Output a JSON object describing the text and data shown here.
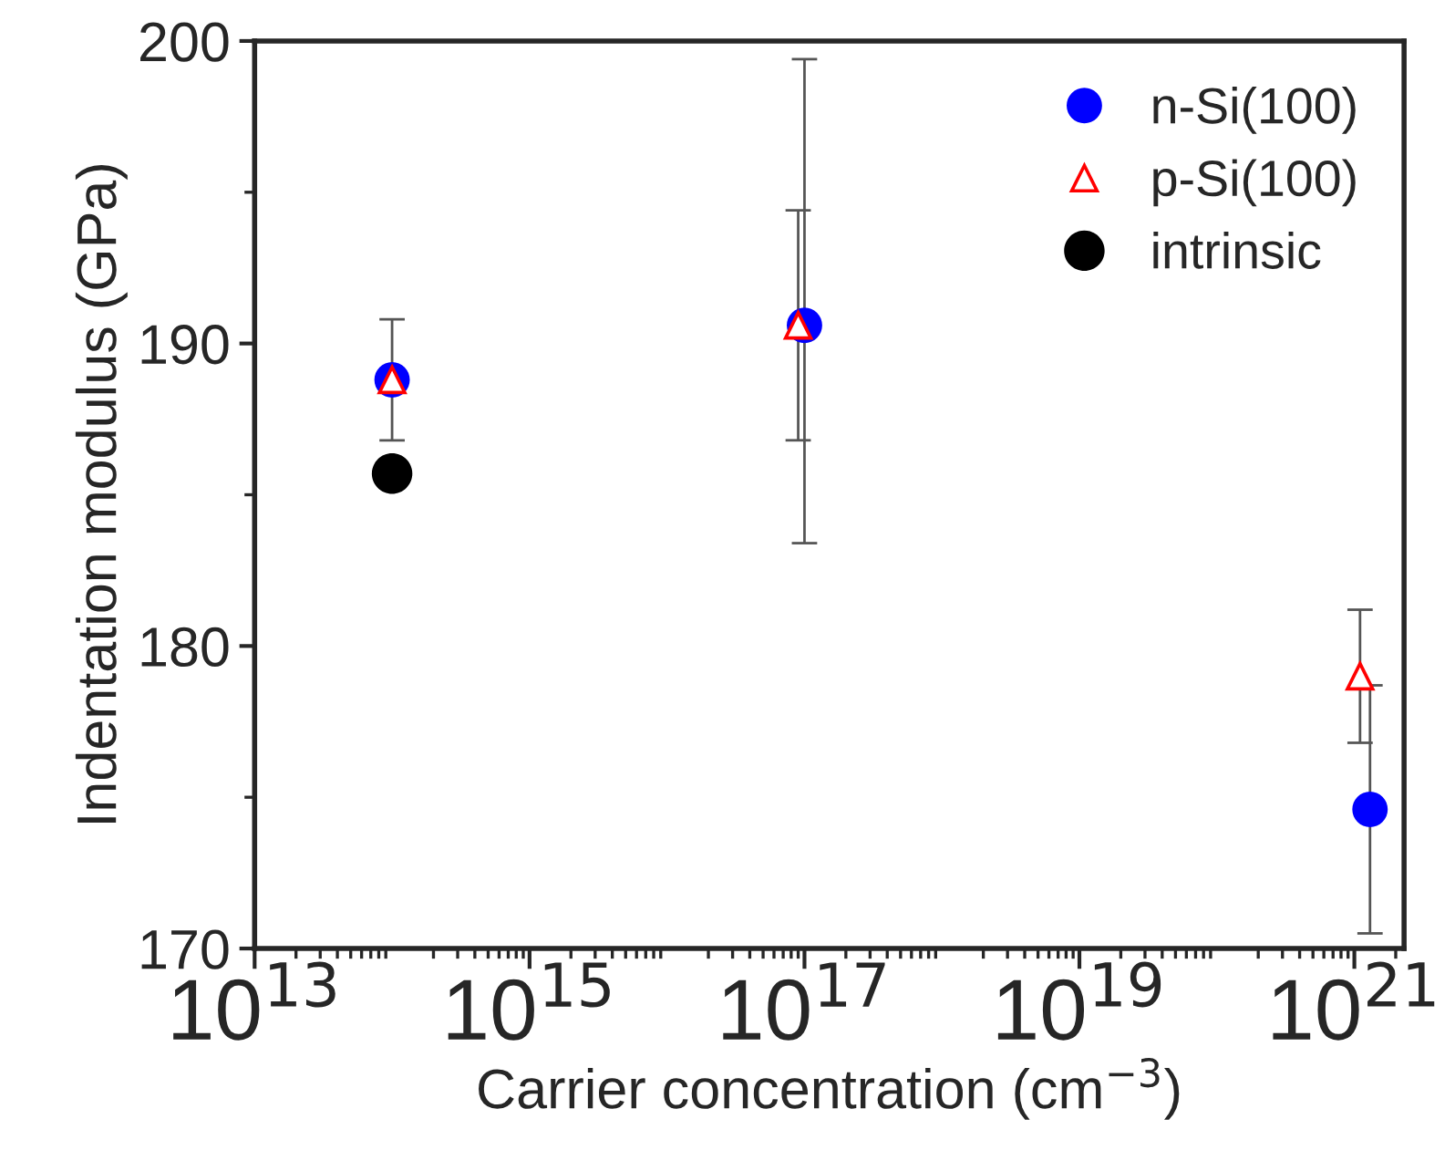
{
  "chart_data": {
    "type": "scatter",
    "xlabel": "Carrier concentration (cm$^{−3}$)",
    "ylabel": "Indentation modulus (GPa)",
    "log": "x",
    "xlim": [
      10000000000000.0,
      2.3e+21
    ],
    "xticks": [
      {
        "value": 10000000000000.0,
        "label": "10$^{13}$"
      },
      {
        "value": 1000000000000000.0,
        "label": "10$^{15}$"
      },
      {
        "value": 1e+17,
        "label": "10$^{17}$"
      },
      {
        "value": 1e+19,
        "label": "10$^{19}$"
      },
      {
        "value": 1e+21,
        "label": "10$^{21}$"
      }
    ],
    "ylim": [
      170,
      200
    ],
    "yticks": [
      170,
      180,
      190,
      200
    ],
    "grid": false,
    "legend": "top right",
    "series": [
      {
        "name": "n-Si(100)",
        "color": "#0000ff",
        "marker": "circle",
        "x": [
          100000000000000.0,
          1e+17,
          1.3e+21
        ],
        "values": [
          188.8,
          190.6,
          174.6
        ],
        "errors": [
          2.0,
          [
            183.4,
            199.4
          ],
          4.1
        ]
      },
      {
        "name": "p-Si(100)",
        "color": "#ff0000",
        "marker": "triangle",
        "x": [
          100000000000000.0,
          9e+16,
          1.1e+21
        ],
        "values": [
          188.8,
          190.6,
          179.0
        ],
        "errors": [
          null,
          3.8,
          2.2
        ]
      },
      {
        "name": "intrinsic",
        "color": "#000000",
        "marker": "circle",
        "x": [
          100000000000000.0
        ],
        "values": [
          185.7
        ]
      }
    ]
  }
}
